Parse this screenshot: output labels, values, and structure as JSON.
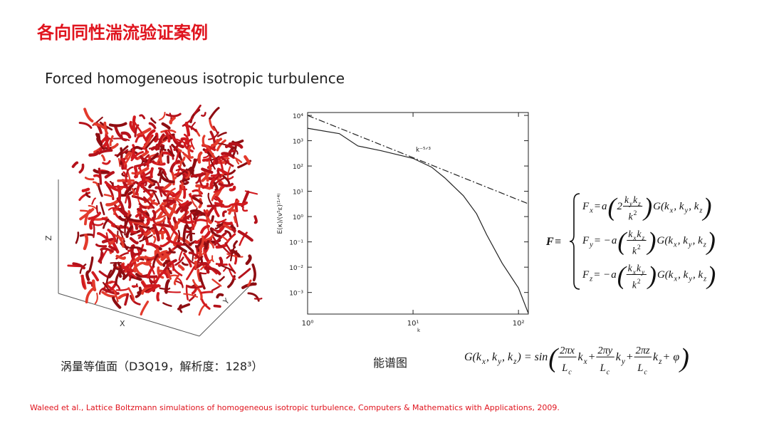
{
  "header": {
    "title": "各向同性湍流验证案例",
    "subtitle": "Forced homogeneous isotropic turbulence"
  },
  "figure": {
    "axis_labels": [
      "Z",
      "X",
      "Y"
    ],
    "caption": "涡量等值面（D3Q19，解析度：128³）"
  },
  "chart_data": {
    "type": "line",
    "caption": "能谱图",
    "xlabel": "k",
    "ylabel": "E(κ)/(ν⁵ε)⁽¹ᐟ⁴⁾",
    "annotation": "k⁻⁵ᐟ³",
    "log_x": true,
    "log_y": true,
    "xlim": [
      1,
      124
    ],
    "ylim": [
      0.00014,
      13000
    ],
    "xticks": [
      {
        "value": 1,
        "label": "10⁰"
      },
      {
        "value": 10,
        "label": "10¹"
      },
      {
        "value": 100,
        "label": "10²"
      }
    ],
    "yticks": [
      {
        "value": 0.001,
        "label": "10⁻³"
      },
      {
        "value": 0.01,
        "label": "10⁻²"
      },
      {
        "value": 0.1,
        "label": "10⁻¹"
      },
      {
        "value": 1,
        "label": "10⁰"
      },
      {
        "value": 10,
        "label": "10¹"
      },
      {
        "value": 100,
        "label": "10²"
      },
      {
        "value": 1000,
        "label": "10³"
      },
      {
        "value": 10000,
        "label": "10⁴"
      }
    ],
    "series": [
      {
        "color": "#222222",
        "style": "solid",
        "x": [
          1,
          2,
          3,
          5,
          10,
          15,
          20,
          30,
          40,
          50,
          70,
          100,
          124
        ],
        "values": [
          3100,
          1900,
          620,
          400,
          200,
          90,
          34,
          6.7,
          1.3,
          0.19,
          0.0144,
          0.0015,
          0.00015
        ]
      },
      {
        "color": "#222222",
        "style": "dashdot",
        "x": [
          1,
          124
        ],
        "values": [
          10000,
          3.2
        ]
      }
    ]
  },
  "equations": {
    "force": {
      "lhs": [
        "F",
        " ≡"
      ],
      "lines": [
        [
          "F",
          {
            "sub": "x"
          },
          " = ",
          "a",
          "(",
          "2",
          {
            "frac": {
              "num": [
                "k",
                {
                  "sub": "y"
                },
                "k",
                {
                  "sub": "z"
                }
              ],
              "den": [
                "k",
                {
                  "sup": "2"
                }
              ]
            }
          },
          ")",
          " G(k",
          {
            "sub": "x"
          },
          ", k",
          {
            "sub": "y"
          },
          ", k",
          {
            "sub": "z"
          },
          ")"
        ],
        [
          "F",
          {
            "sub": "y"
          },
          " = −",
          "a",
          "(",
          {
            "frac": {
              "num": [
                "k",
                {
                  "sub": "x"
                },
                "k",
                {
                  "sub": "z"
                }
              ],
              "den": [
                "k",
                {
                  "sup": "2"
                }
              ]
            }
          },
          ")",
          " G(k",
          {
            "sub": "x"
          },
          ", k",
          {
            "sub": "y"
          },
          ", k",
          {
            "sub": "z"
          },
          ")"
        ],
        [
          "F",
          {
            "sub": "z"
          },
          " = −",
          "a",
          "(",
          {
            "frac": {
              "num": [
                "k",
                {
                  "sub": "x"
                },
                "k",
                {
                  "sub": "y"
                }
              ],
              "den": [
                "k",
                {
                  "sup": "2"
                }
              ]
            }
          },
          ")",
          " G(k",
          {
            "sub": "x"
          },
          ", k",
          {
            "sub": "y"
          },
          ", k",
          {
            "sub": "z"
          },
          ")"
        ]
      ]
    },
    "g": [
      "G(k",
      {
        "sub": "x"
      },
      ", k",
      {
        "sub": "y"
      },
      ", k",
      {
        "sub": "z"
      },
      ") = sin ",
      "(",
      {
        "frac": {
          "num": [
            "2πx"
          ],
          "den": [
            "L",
            {
              "sub": "c"
            }
          ]
        }
      },
      "k",
      {
        "sub": "x"
      },
      " + ",
      {
        "frac": {
          "num": [
            "2πy"
          ],
          "den": [
            "L",
            {
              "sub": "c"
            }
          ]
        }
      },
      "k",
      {
        "sub": "y"
      },
      " + ",
      {
        "frac": {
          "num": [
            "2πz"
          ],
          "den": [
            "L",
            {
              "sub": "c"
            }
          ]
        }
      },
      "k",
      {
        "sub": "z"
      },
      " + φ",
      ")"
    ]
  },
  "footer": {
    "reference": "Waleed et al., Lattice Boltzmann simulations of homogeneous isotropic turbulence, Computers & Mathematics with Applications, 2009."
  }
}
